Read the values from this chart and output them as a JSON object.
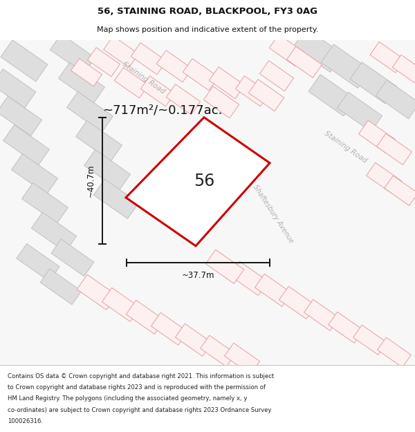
{
  "title_line1": "56, STAINING ROAD, BLACKPOOL, FY3 0AG",
  "title_line2": "Map shows position and indicative extent of the property.",
  "area_text": "~717m²/~0.177ac.",
  "plot_number": "56",
  "dim_width": "~37.7m",
  "dim_height": "~40.7m",
  "road_label_top": "Staining Road",
  "road_label_right": "Staining Road",
  "avenue_label": "Shaftesbury Avenue",
  "copyright_lines": [
    "Contains OS data © Crown copyright and database right 2021. This information is subject",
    "to Crown copyright and database rights 2023 and is reproduced with the permission of",
    "HM Land Registry. The polygons (including the associated geometry, namely x, y",
    "co-ordinates) are subject to Crown copyright and database rights 2023 Ordnance Survey",
    "100026316."
  ],
  "bg_color": "#f7f7f7",
  "plot_fill": "#ffffff",
  "plot_edge": "#cc0000",
  "gray_building_fill": "#dedede",
  "gray_building_edge": "#c0c0c0",
  "pink_building_fill": "#fdf0f0",
  "pink_building_edge": "#e8a0a0",
  "road_fill": "#ebebeb",
  "dim_color": "#111111",
  "title_color": "#111111",
  "road_text_color": "#b0b0b0",
  "footer_color": "#222222"
}
